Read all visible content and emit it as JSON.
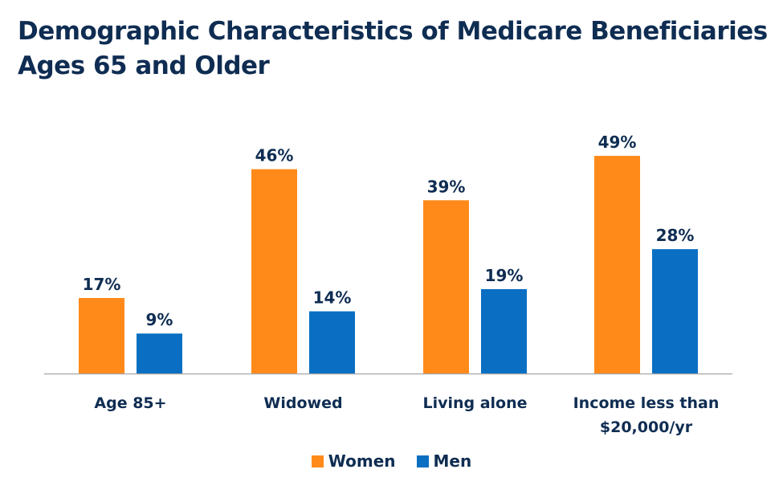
{
  "chart_data": {
    "type": "bar",
    "title": "Demographic Characteristics of Medicare Beneficiaries Ages 65 and Older",
    "categories": [
      [
        "Age 85+"
      ],
      [
        "Widowed"
      ],
      [
        "Living alone"
      ],
      [
        "Income less than",
        "$20,000/yr"
      ]
    ],
    "series": [
      {
        "name": "Women",
        "color": "#ff8a1a",
        "values": [
          17,
          46,
          39,
          49
        ],
        "labels": [
          "17%",
          "46%",
          "39%",
          "49%"
        ]
      },
      {
        "name": "Men",
        "color": "#0a6fc2",
        "values": [
          9,
          14,
          19,
          28
        ],
        "labels": [
          "9%",
          "14%",
          "19%",
          "28%"
        ]
      }
    ],
    "ylim": [
      0,
      55
    ],
    "grid": false,
    "legend_position": "bottom"
  }
}
